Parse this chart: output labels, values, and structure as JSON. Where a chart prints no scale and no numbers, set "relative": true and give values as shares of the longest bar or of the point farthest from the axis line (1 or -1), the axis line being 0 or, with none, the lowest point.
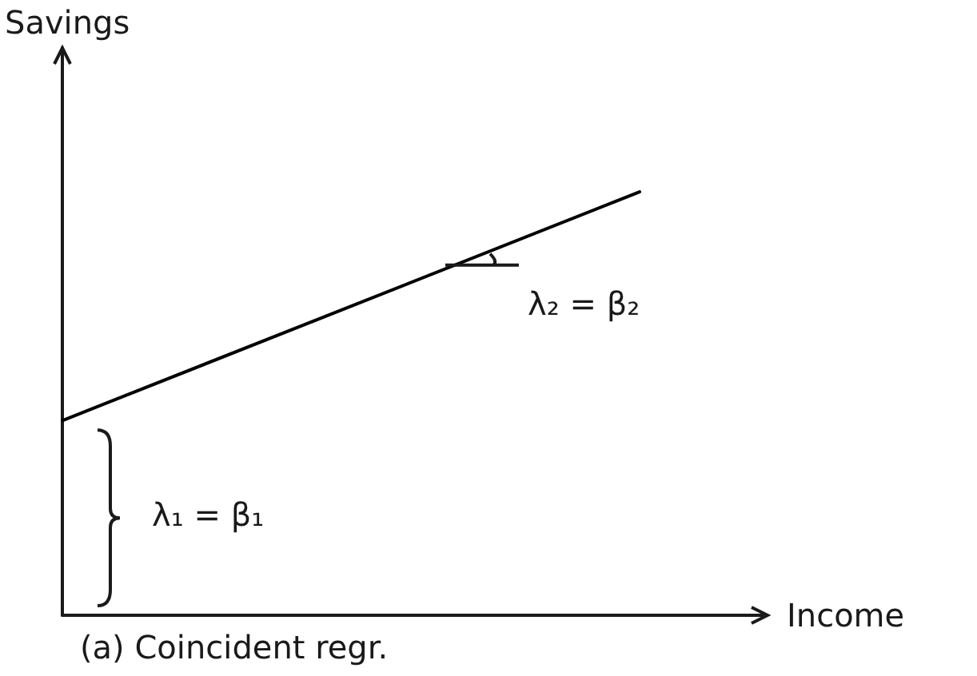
{
  "chart_data": {
    "type": "line",
    "xlabel": "Income",
    "ylabel": "Savings",
    "relative": true,
    "grid": false,
    "marker": "none",
    "line_style": "solid",
    "categories": [
      null,
      null
    ],
    "series": [
      {
        "color": "#000000",
        "values": [
          0.46,
          1
        ]
      }
    ],
    "annotations": [
      "λ₁ = β₁",
      "λ₂ = β₂",
      "(a) Coincident regr."
    ]
  }
}
